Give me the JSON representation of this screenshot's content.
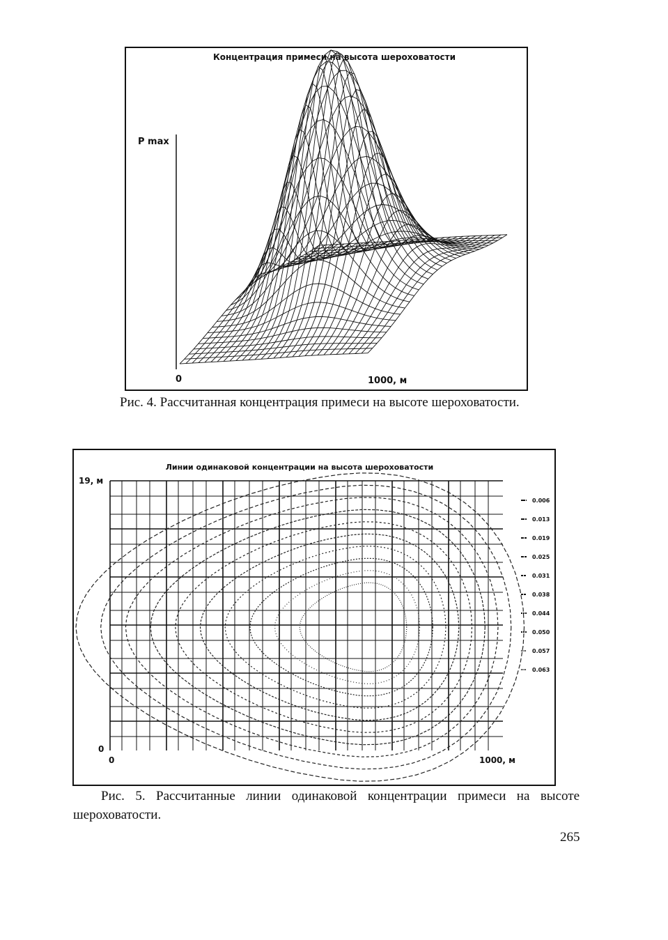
{
  "figure_1": {
    "title": "Концентрация примеси на высота шероховатости",
    "y_axis_label": "P max",
    "x_axis_start": "0",
    "x_axis_end": "1000, м",
    "caption": "Рис. 4. Рассчитанная концентрация примеси на высоте шероховатости."
  },
  "figure_2": {
    "title": "Линии одинаковой концентрации на высота шероховатости",
    "y_axis_top": "19, м",
    "y_axis_start": "0",
    "x_axis_start": "0",
    "x_axis_end": "1000, м",
    "legend": [
      "0.006",
      "0.013",
      "0.019",
      "0.025",
      "0.031",
      "0.038",
      "0.044",
      "0.050",
      "0.057",
      "0.063"
    ],
    "caption": "Рис. 5. Рассчитанные линии одинаковой концентрации примеси на высоте шероховатости."
  },
  "page_number": "265"
}
